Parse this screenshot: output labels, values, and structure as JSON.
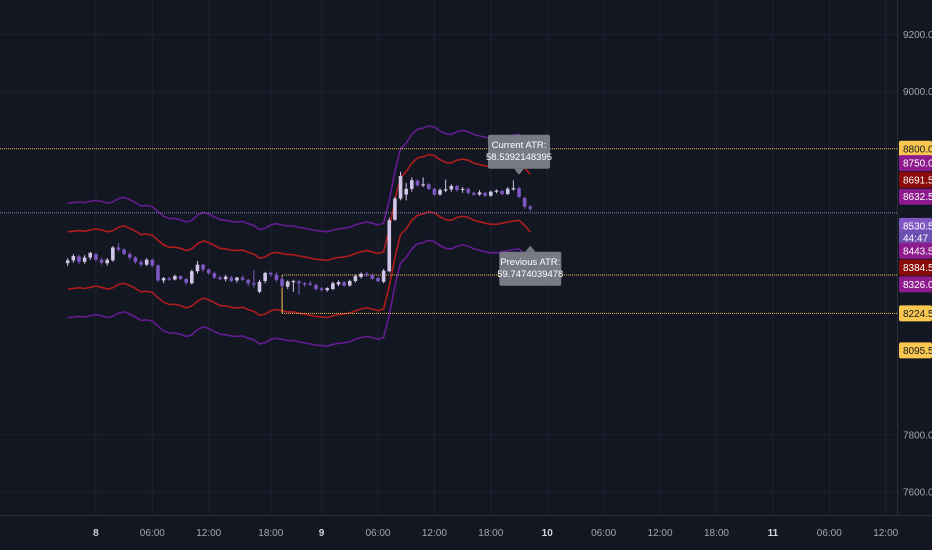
{
  "colors": {
    "background": "#131722",
    "grid": "#1e2230",
    "axis_line": "#2a2e39",
    "axis_text": "#a3a6af",
    "up_candle": "#d1c4e9",
    "down_candle": "#7e57c2",
    "band_outer": "#6a1b9a",
    "band_inner": "#b71c1c",
    "level_line": "#f9c74f",
    "current_line": "#8e7cc3",
    "tooltip_bg": "#787b86",
    "tooltip_text": "#ffffff"
  },
  "chart_data": {
    "type": "candlestick",
    "ylim": [
      7520,
      9320
    ],
    "x_range": [
      -12,
      147
    ],
    "time_ticks": [
      {
        "label": "8",
        "bar": 5,
        "bold": true
      },
      {
        "label": "06:00",
        "bar": 15
      },
      {
        "label": "12:00",
        "bar": 25
      },
      {
        "label": "18:00",
        "bar": 36
      },
      {
        "label": "9",
        "bar": 45,
        "bold": true
      },
      {
        "label": "06:00",
        "bar": 55
      },
      {
        "label": "12:00",
        "bar": 65
      },
      {
        "label": "18:00",
        "bar": 75
      },
      {
        "label": "10",
        "bar": 85,
        "bold": true
      },
      {
        "label": "06:00",
        "bar": 95
      },
      {
        "label": "12:00",
        "bar": 105
      },
      {
        "label": "18:00",
        "bar": 115
      },
      {
        "label": "11",
        "bar": 125,
        "bold": true
      },
      {
        "label": "06:00",
        "bar": 135
      },
      {
        "label": "12:00",
        "bar": 145
      }
    ],
    "price_ticks": [
      "9200.0",
      "9000.0",
      "7800.0",
      "7600.0"
    ],
    "price_tick_values": [
      9200,
      9000,
      7800,
      7600
    ],
    "price_labels": [
      {
        "text": "8800.0",
        "value": 8800,
        "bg": "#f9c74f",
        "color": "#131722"
      },
      {
        "text": "8750.0",
        "value": 8750,
        "bg": "#8e1b8e",
        "color": "#ffffff"
      },
      {
        "text": "8691.5",
        "value": 8691.5,
        "bg": "#8b0a0a",
        "color": "#ffffff"
      },
      {
        "text": "8632.5",
        "value": 8632.5,
        "bg": "#8e1b8e",
        "color": "#ffffff"
      },
      {
        "text": "8530.5",
        "value": 8530.5,
        "bg": "#7e57c2",
        "color": "#ffffff"
      },
      {
        "text": "44:47",
        "value": 8488,
        "bg": "#6c4fb0",
        "color": "#ffffff"
      },
      {
        "text": "8443.5",
        "value": 8443.5,
        "bg": "#8e1b8e",
        "color": "#ffffff"
      },
      {
        "text": "8384.5",
        "value": 8384.5,
        "bg": "#8b0a0a",
        "color": "#ffffff"
      },
      {
        "text": "8326.0",
        "value": 8326,
        "bg": "#8e1b8e",
        "color": "#ffffff"
      },
      {
        "text": "8224.5",
        "value": 8224.5,
        "bg": "#f9c74f",
        "color": "#131722"
      },
      {
        "text": "8095.5",
        "value": 8095.5,
        "bg": "#f9c74f",
        "color": "#131722"
      }
    ],
    "horizontal_levels": [
      {
        "value": 8800,
        "color": "#f9c74f",
        "from_bar": -12
      },
      {
        "value": 8576,
        "color": "#8e7cc3",
        "from_bar": -12
      },
      {
        "value": 8359,
        "color": "#f9c74f",
        "from_bar": 38
      },
      {
        "value": 8224.5,
        "color": "#f9c74f",
        "from_bar": 38
      }
    ],
    "range_box": {
      "from_bar": 38,
      "top": 8359,
      "bottom": 8224.5
    },
    "candles": [
      [
        8400,
        8418,
        8390,
        8410
      ],
      [
        8410,
        8432,
        8402,
        8425
      ],
      [
        8424,
        8430,
        8398,
        8405
      ],
      [
        8405,
        8428,
        8398,
        8420
      ],
      [
        8420,
        8440,
        8412,
        8436
      ],
      [
        8432,
        8436,
        8406,
        8412
      ],
      [
        8412,
        8420,
        8395,
        8402
      ],
      [
        8400,
        8418,
        8392,
        8412
      ],
      [
        8410,
        8460,
        8405,
        8455
      ],
      [
        8455,
        8470,
        8440,
        8448
      ],
      [
        8448,
        8452,
        8428,
        8433
      ],
      [
        8432,
        8438,
        8412,
        8420
      ],
      [
        8420,
        8425,
        8398,
        8405
      ],
      [
        8404,
        8412,
        8388,
        8395
      ],
      [
        8395,
        8418,
        8390,
        8412
      ],
      [
        8412,
        8416,
        8386,
        8392
      ],
      [
        8392,
        8396,
        8335,
        8340
      ],
      [
        8340,
        8352,
        8330,
        8348
      ],
      [
        8347,
        8352,
        8338,
        8342
      ],
      [
        8343,
        8360,
        8340,
        8355
      ],
      [
        8355,
        8358,
        8340,
        8345
      ],
      [
        8345,
        8348,
        8325,
        8332
      ],
      [
        8330,
        8378,
        8326,
        8372
      ],
      [
        8372,
        8408,
        8364,
        8395
      ],
      [
        8395,
        8398,
        8370,
        8378
      ],
      [
        8378,
        8382,
        8360,
        8365
      ],
      [
        8365,
        8370,
        8345,
        8350
      ],
      [
        8350,
        8356,
        8340,
        8344
      ],
      [
        8344,
        8360,
        8336,
        8353
      ],
      [
        8350,
        8356,
        8334,
        8338
      ],
      [
        8340,
        8352,
        8332,
        8350
      ],
      [
        8350,
        8357,
        8338,
        8342
      ],
      [
        8342,
        8345,
        8320,
        8330
      ],
      [
        8330,
        8376,
        8315,
        8328
      ],
      [
        8300,
        8342,
        8295,
        8335
      ],
      [
        8338,
        8370,
        8330,
        8366
      ],
      [
        8366,
        8370,
        8352,
        8360
      ],
      [
        8360,
        8368,
        8335,
        8342
      ],
      [
        8345,
        8355,
        8315,
        8320
      ],
      [
        8318,
        8340,
        8310,
        8336
      ],
      [
        8336,
        8342,
        8300,
        8338
      ],
      [
        8336,
        8342,
        8290,
        8330
      ],
      [
        8330,
        8334,
        8318,
        8326
      ],
      [
        8330,
        8338,
        8320,
        8326
      ],
      [
        8324,
        8328,
        8305,
        8310
      ],
      [
        8312,
        8316,
        8302,
        8306
      ],
      [
        8306,
        8316,
        8300,
        8313
      ],
      [
        8310,
        8336,
        8306,
        8330
      ],
      [
        8326,
        8340,
        8320,
        8334
      ],
      [
        8334,
        8338,
        8318,
        8322
      ],
      [
        8322,
        8342,
        8318,
        8338
      ],
      [
        8338,
        8360,
        8332,
        8355
      ],
      [
        8352,
        8368,
        8346,
        8363
      ],
      [
        8363,
        8370,
        8352,
        8358
      ],
      [
        8358,
        8364,
        8342,
        8346
      ],
      [
        8348,
        8352,
        8334,
        8337
      ],
      [
        8335,
        8380,
        8330,
        8374
      ],
      [
        8372,
        8560,
        8368,
        8550
      ],
      [
        8552,
        8632,
        8548,
        8626
      ],
      [
        8626,
        8720,
        8620,
        8705
      ],
      [
        8640,
        8680,
        8620,
        8660
      ],
      [
        8660,
        8700,
        8650,
        8690
      ],
      [
        8688,
        8694,
        8668,
        8672
      ],
      [
        8672,
        8700,
        8666,
        8676
      ],
      [
        8676,
        8680,
        8656,
        8660
      ],
      [
        8660,
        8664,
        8636,
        8640
      ],
      [
        8640,
        8662,
        8636,
        8656
      ],
      [
        8656,
        8692,
        8648,
        8658
      ],
      [
        8658,
        8676,
        8650,
        8670
      ],
      [
        8670,
        8674,
        8650,
        8656
      ],
      [
        8658,
        8666,
        8646,
        8660
      ],
      [
        8660,
        8664,
        8640,
        8646
      ],
      [
        8646,
        8650,
        8636,
        8640
      ],
      [
        8640,
        8656,
        8636,
        8648
      ],
      [
        8646,
        8650,
        8632,
        8636
      ],
      [
        8636,
        8654,
        8632,
        8650
      ],
      [
        8650,
        8658,
        8644,
        8654
      ],
      [
        8652,
        8656,
        8638,
        8642
      ],
      [
        8642,
        8666,
        8638,
        8660
      ],
      [
        8660,
        8690,
        8654,
        8662
      ],
      [
        8662,
        8668,
        8628,
        8632
      ],
      [
        8628,
        8632,
        8590,
        8598
      ],
      [
        8598,
        8604,
        8582,
        8590
      ]
    ],
    "band_mid": [
      8410,
      8412,
      8414,
      8412,
      8416,
      8420,
      8416,
      8410,
      8414,
      8426,
      8430,
      8422,
      8412,
      8400,
      8402,
      8398,
      8380,
      8364,
      8356,
      8356,
      8352,
      8344,
      8350,
      8368,
      8378,
      8372,
      8362,
      8352,
      8350,
      8346,
      8344,
      8346,
      8338,
      8332,
      8318,
      8322,
      8334,
      8338,
      8334,
      8330,
      8330,
      8325,
      8322,
      8318,
      8314,
      8312,
      8310,
      8316,
      8320,
      8322,
      8326,
      8334,
      8340,
      8344,
      8340,
      8334,
      8340,
      8420,
      8520,
      8600,
      8620,
      8650,
      8668,
      8672,
      8680,
      8676,
      8662,
      8652,
      8650,
      8660,
      8664,
      8660,
      8650,
      8645,
      8640,
      8636,
      8636,
      8640,
      8644,
      8648,
      8650,
      8632,
      8610
    ],
    "band_offsets": [
      -200,
      -100,
      100,
      200
    ],
    "annotations": [
      {
        "lines": [
          "Current ATR:",
          "58.5392148395"
        ],
        "bar": 80,
        "value": 8730,
        "pointer": "down"
      },
      {
        "lines": [
          "Previous ATR:",
          "59.7474039478"
        ],
        "bar": 82,
        "value": 8440,
        "pointer": "up"
      }
    ],
    "title": "",
    "xlabel": "",
    "ylabel": ""
  }
}
